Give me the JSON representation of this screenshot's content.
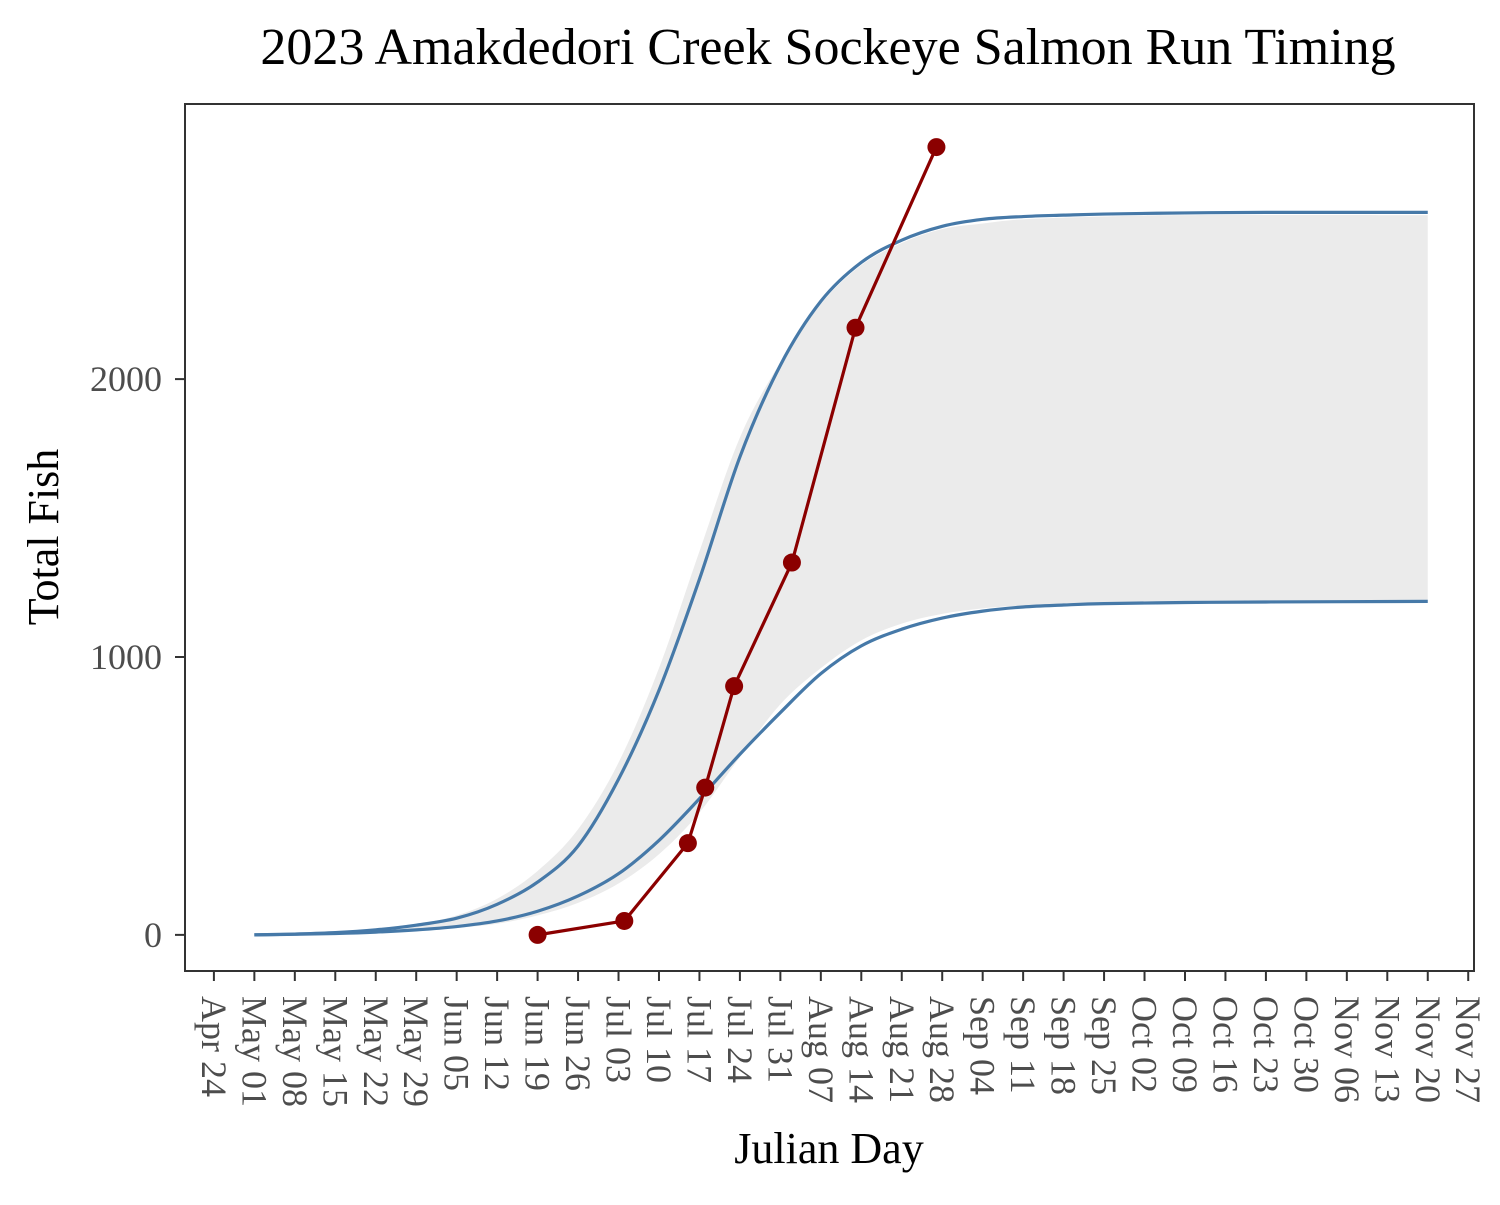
{
  "chart_data": {
    "type": "line",
    "title": "2023 Amakdedori Creek Sockeye Salmon Run Timing",
    "xlabel": "Julian Day",
    "ylabel": "Total Fish",
    "year": 2023,
    "xlim": [
      "2023-04-19",
      "2023-11-28"
    ],
    "ylim": [
      -130,
      2990
    ],
    "x_ticks": [
      "2023-04-24",
      "2023-05-01",
      "2023-05-08",
      "2023-05-15",
      "2023-05-22",
      "2023-05-29",
      "2023-06-05",
      "2023-06-12",
      "2023-06-19",
      "2023-06-26",
      "2023-07-03",
      "2023-07-10",
      "2023-07-17",
      "2023-07-24",
      "2023-07-31",
      "2023-08-07",
      "2023-08-14",
      "2023-08-21",
      "2023-08-28",
      "2023-09-04",
      "2023-09-11",
      "2023-09-18",
      "2023-09-25",
      "2023-10-02",
      "2023-10-09",
      "2023-10-16",
      "2023-10-23",
      "2023-10-30",
      "2023-11-06",
      "2023-11-13",
      "2023-11-20",
      "2023-11-27"
    ],
    "x_tick_labels": [
      "Apr 24",
      "May 01",
      "May 08",
      "May 15",
      "May 22",
      "May 29",
      "Jun 05",
      "Jun 12",
      "Jun 19",
      "Jun 26",
      "Jul 03",
      "Jul 10",
      "Jul 17",
      "Jul 24",
      "Jul 31",
      "Aug 07",
      "Aug 14",
      "Aug 21",
      "Aug 28",
      "Sep 04",
      "Sep 11",
      "Sep 18",
      "Sep 25",
      "Oct 02",
      "Oct 09",
      "Oct 16",
      "Oct 23",
      "Oct 30",
      "Nov 06",
      "Nov 13",
      "Nov 20",
      "Nov 27"
    ],
    "y_ticks": [
      0,
      1000,
      2000
    ],
    "y_tick_labels": [
      "0",
      "1000",
      "2000"
    ],
    "grid": false,
    "legend": "none",
    "colors": {
      "panel_background": "#ffffff",
      "panel_border": "#333333",
      "band_fill": "#ebebeb",
      "envelope_line": "#4679a8",
      "observed": "#8b0000",
      "tick_text": "#4d4d4d",
      "axis_title": "#000000"
    },
    "band": {
      "x": [
        "2023-05-01",
        "2023-05-15",
        "2023-05-29",
        "2023-06-05",
        "2023-06-12",
        "2023-06-19",
        "2023-06-26",
        "2023-07-03",
        "2023-07-10",
        "2023-07-17",
        "2023-07-24",
        "2023-07-31",
        "2023-08-07",
        "2023-08-14",
        "2023-08-21",
        "2023-08-28",
        "2023-09-04",
        "2023-09-11",
        "2023-09-25",
        "2023-10-09",
        "2023-11-20"
      ],
      "upper": [
        0,
        10,
        40,
        70,
        130,
        230,
        380,
        620,
        960,
        1380,
        1790,
        2060,
        2270,
        2410,
        2490,
        2540,
        2560,
        2575,
        2585,
        2590,
        2590
      ],
      "lower": [
        0,
        5,
        15,
        25,
        40,
        70,
        115,
        185,
        290,
        440,
        640,
        830,
        960,
        1060,
        1120,
        1155,
        1175,
        1185,
        1195,
        1198,
        1200
      ]
    },
    "envelope_upper": {
      "x": [
        "2023-05-01",
        "2023-05-08",
        "2023-05-15",
        "2023-05-22",
        "2023-05-29",
        "2023-06-05",
        "2023-06-12",
        "2023-06-19",
        "2023-06-26",
        "2023-07-03",
        "2023-07-10",
        "2023-07-17",
        "2023-07-24",
        "2023-07-31",
        "2023-08-07",
        "2023-08-14",
        "2023-08-21",
        "2023-08-28",
        "2023-09-04",
        "2023-09-11",
        "2023-09-18",
        "2023-09-25",
        "2023-10-09",
        "2023-10-23",
        "2023-11-20"
      ],
      "y": [
        0,
        3,
        8,
        18,
        35,
        60,
        110,
        190,
        320,
        560,
        880,
        1280,
        1720,
        2050,
        2280,
        2420,
        2500,
        2550,
        2575,
        2585,
        2590,
        2594,
        2598,
        2600,
        2600
      ]
    },
    "envelope_lower": {
      "x": [
        "2023-05-01",
        "2023-05-08",
        "2023-05-15",
        "2023-05-22",
        "2023-05-29",
        "2023-06-05",
        "2023-06-12",
        "2023-06-19",
        "2023-06-26",
        "2023-07-03",
        "2023-07-10",
        "2023-07-17",
        "2023-07-24",
        "2023-07-31",
        "2023-08-07",
        "2023-08-14",
        "2023-08-21",
        "2023-08-28",
        "2023-09-04",
        "2023-09-11",
        "2023-09-18",
        "2023-09-25",
        "2023-10-09",
        "2023-10-23",
        "2023-11-20"
      ],
      "y": [
        0,
        2,
        5,
        10,
        18,
        30,
        50,
        85,
        140,
        220,
        340,
        490,
        650,
        800,
        940,
        1040,
        1100,
        1140,
        1165,
        1180,
        1187,
        1192,
        1196,
        1198,
        1200
      ]
    },
    "observed": {
      "x": [
        "2023-06-19",
        "2023-07-04",
        "2023-07-15",
        "2023-07-18",
        "2023-07-23",
        "2023-08-02",
        "2023-08-13",
        "2023-08-27"
      ],
      "y": [
        0,
        50,
        330,
        530,
        895,
        1340,
        2185,
        2835
      ]
    }
  }
}
